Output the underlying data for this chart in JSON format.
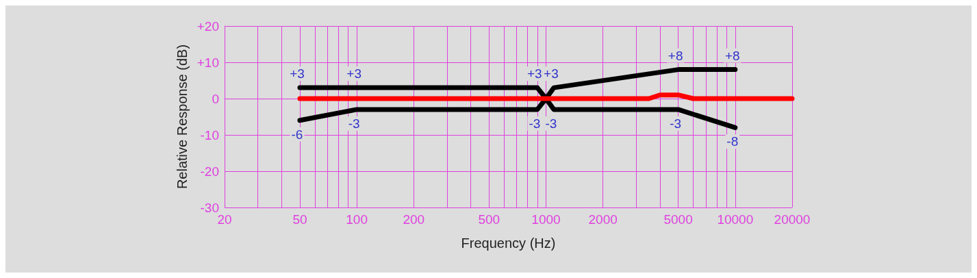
{
  "chart_data": {
    "type": "line",
    "xlabel": "Frequency (Hz)",
    "ylabel": "Relative Response (dB)",
    "log": "x",
    "grid": true,
    "marker": "none",
    "line_style": "solid",
    "xlim": [
      20,
      20000
    ],
    "xticks": [
      20,
      {
        "value": 30,
        "label": null
      },
      {
        "value": 40,
        "label": null
      },
      50,
      {
        "value": 60,
        "label": null
      },
      {
        "value": 70,
        "label": null
      },
      {
        "value": 80,
        "label": null
      },
      {
        "value": 90,
        "label": null
      },
      100,
      200,
      {
        "value": 300,
        "label": null
      },
      {
        "value": 400,
        "label": null
      },
      500,
      {
        "value": 600,
        "label": null
      },
      {
        "value": 700,
        "label": null
      },
      {
        "value": 800,
        "label": null
      },
      {
        "value": 900,
        "label": null
      },
      1000,
      2000,
      {
        "value": 3000,
        "label": null
      },
      {
        "value": 4000,
        "label": null
      },
      5000,
      {
        "value": 6000,
        "label": null
      },
      {
        "value": 7000,
        "label": null
      },
      {
        "value": 8000,
        "label": null
      },
      {
        "value": 9000,
        "label": null
      },
      10000,
      20000
    ],
    "ylim": [
      -30,
      20
    ],
    "yticks": [
      -30,
      -20,
      -10,
      0,
      {
        "value": 10,
        "label": "+10"
      },
      {
        "value": 20,
        "label": "+20"
      }
    ],
    "series": [
      {
        "color": "#000000",
        "x": [
          50,
          900,
          1000,
          1100,
          5000,
          10000
        ],
        "values": [
          3,
          3,
          0,
          3,
          8,
          8
        ]
      },
      {
        "color": "#000000",
        "x": [
          50,
          100,
          900,
          1000,
          1100,
          5000,
          10000
        ],
        "values": [
          -6,
          -3,
          -3,
          0,
          -3,
          -3,
          -8
        ]
      },
      {
        "color": "#ff0000",
        "x": [
          50,
          3500,
          4000,
          5000,
          6000,
          20000
        ],
        "values": [
          0,
          0,
          1,
          1,
          0,
          0
        ]
      }
    ],
    "annotations": [
      {
        "text": "+3",
        "x": 50,
        "y": 3
      },
      {
        "text": "+3",
        "x": 100,
        "y": 3
      },
      {
        "text": "+3",
        "x": 900,
        "y": 3
      },
      {
        "text": "+3",
        "x": 1100,
        "y": 3
      },
      {
        "text": "+8",
        "x": 5000,
        "y": 8
      },
      {
        "text": "+8",
        "x": 10000,
        "y": 8
      },
      {
        "text": "-6",
        "x": 50,
        "y": -6
      },
      {
        "text": "-3",
        "x": 100,
        "y": -3
      },
      {
        "text": "-3",
        "x": 900,
        "y": -3
      },
      {
        "text": "-3",
        "x": 1100,
        "y": -3
      },
      {
        "text": "-3",
        "x": 5000,
        "y": -3
      },
      {
        "text": "-8",
        "x": 10000,
        "y": -8
      }
    ]
  }
}
